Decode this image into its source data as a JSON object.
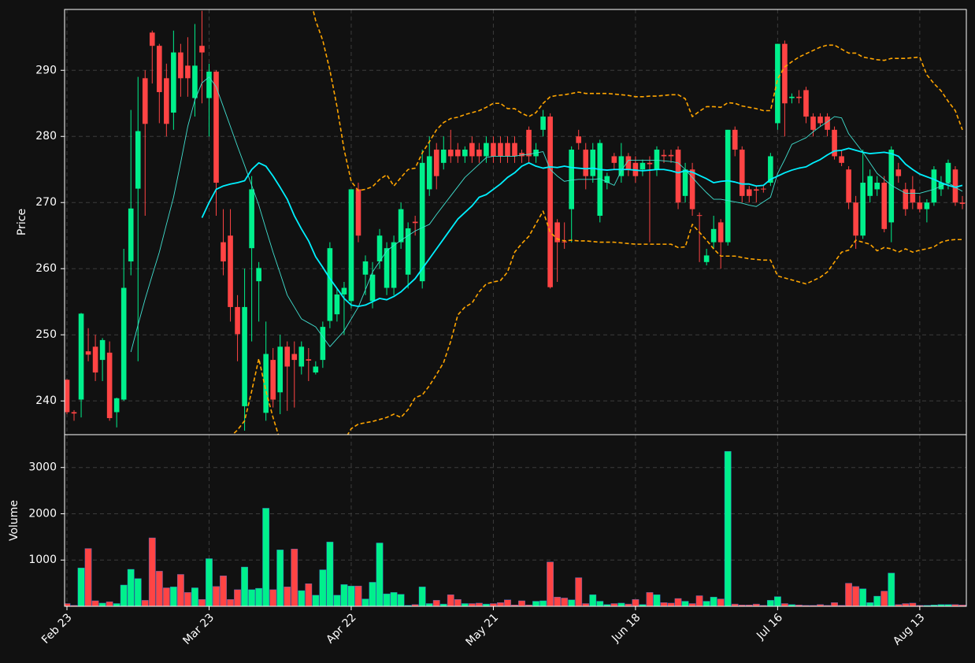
{
  "chart_data": {
    "type": "candlestick",
    "ylabel": "Price",
    "ylim": [
      234.9,
      299.2
    ],
    "yticks": [
      240,
      250,
      260,
      270,
      280,
      290
    ],
    "grid": true,
    "up_color": "#00f08c",
    "down_color": "#ff4444",
    "categories": [
      "Feb 23",
      null,
      null,
      null,
      null,
      null,
      null,
      null,
      null,
      null,
      null,
      null,
      null,
      null,
      null,
      null,
      null,
      null,
      null,
      null,
      "Mar 23",
      null,
      null,
      null,
      null,
      null,
      null,
      null,
      null,
      null,
      null,
      null,
      null,
      null,
      null,
      null,
      null,
      null,
      null,
      null,
      "Apr 22",
      null,
      null,
      null,
      null,
      null,
      null,
      null,
      null,
      null,
      null,
      null,
      null,
      null,
      null,
      null,
      null,
      null,
      null,
      null,
      "May 21",
      null,
      null,
      null,
      null,
      null,
      null,
      null,
      null,
      null,
      null,
      null,
      null,
      null,
      null,
      null,
      null,
      null,
      null,
      null,
      "Jun 18",
      null,
      null,
      null,
      null,
      null,
      null,
      null,
      null,
      null,
      null,
      null,
      null,
      null,
      null,
      null,
      null,
      null,
      null,
      null,
      "Jul 16",
      null,
      null,
      null,
      null,
      null,
      null,
      null,
      null,
      null,
      null,
      null,
      null,
      null,
      null,
      null,
      null,
      null,
      null,
      null,
      "Aug 13",
      null,
      null,
      null,
      null,
      null,
      null
    ],
    "open": [
      243.2,
      238.3,
      240.2,
      247.5,
      248.2,
      246.2,
      247.3,
      238.3,
      240.2,
      261.1,
      272.1,
      288.8,
      295.7,
      293.7,
      288.8,
      283.6,
      292.7,
      290.7,
      285.8,
      293.7,
      285.8,
      289.8,
      264,
      265,
      254.2,
      239.2,
      263.1,
      258.1,
      238.2,
      246.2,
      241.3,
      248.2,
      247.1,
      245.2,
      246.3,
      244.3,
      246.2,
      252.1,
      253.1,
      256.1,
      255.1,
      272,
      259.1,
      255.1,
      261.1,
      257.1,
      257.1,
      264,
      259.1,
      267.1,
      258.1,
      272,
      278,
      276,
      278,
      278,
      277,
      279,
      278,
      277,
      279,
      279,
      279,
      279,
      277.5,
      281,
      277,
      281,
      283,
      267,
      264.1,
      269,
      280,
      278,
      274,
      268,
      273,
      277,
      274,
      277,
      276,
      275,
      276,
      275,
      277.2,
      277.2,
      278,
      271,
      275,
      268.1,
      261,
      264,
      267,
      264,
      281,
      278,
      272,
      272,
      272.1,
      273,
      282,
      294,
      285.8,
      286,
      287,
      283,
      283,
      283,
      281,
      277,
      275,
      270,
      265,
      271,
      272,
      273,
      267,
      275,
      272,
      272,
      270,
      269,
      270,
      272,
      273,
      275,
      270
    ],
    "high": [
      243.3,
      238.6,
      253.3,
      251,
      250,
      249.5,
      249,
      240.5,
      263,
      284,
      289,
      290,
      296,
      294,
      291,
      296,
      294,
      295,
      297,
      299,
      291,
      290,
      269,
      269,
      256,
      260,
      274,
      261,
      252,
      248,
      250,
      249,
      249,
      249,
      248,
      246,
      252,
      264,
      257,
      258,
      272,
      273,
      262,
      261,
      266,
      264,
      265,
      270,
      267,
      268,
      278,
      280,
      279,
      280,
      281,
      279,
      278.5,
      280,
      279,
      280,
      280,
      280,
      280,
      280,
      278,
      281.5,
      279,
      284,
      283.5,
      267.5,
      267,
      278.5,
      281,
      279,
      279,
      279.5,
      274.5,
      277.5,
      279,
      277.5,
      277,
      276.5,
      277,
      278.5,
      278,
      278,
      278.5,
      276,
      276,
      268.5,
      263,
      268,
      267.5,
      281,
      281.5,
      278.5,
      272.5,
      272.5,
      272.5,
      277.5,
      294,
      294.5,
      286.5,
      287,
      287.5,
      283.5,
      283.5,
      283.5,
      281.5,
      278,
      275.5,
      271,
      278,
      275,
      274,
      274,
      278.5,
      276,
      273,
      274,
      271,
      270.5,
      275.5,
      274,
      276.5,
      275.5,
      271
    ],
    "low": [
      238,
      237,
      237.5,
      246,
      243,
      243,
      237,
      236,
      240,
      259,
      246,
      268,
      288,
      282,
      280,
      281,
      286,
      286,
      283,
      285,
      280,
      268,
      259,
      252,
      246,
      235.5,
      249,
      252,
      237,
      239,
      238,
      238.5,
      239,
      244,
      243,
      244,
      245,
      251,
      252,
      250,
      254,
      264,
      256,
      254,
      260,
      256,
      256,
      263,
      257,
      265,
      257,
      271,
      272,
      275,
      276,
      276,
      276,
      276,
      276,
      276,
      276,
      276,
      276,
      276,
      276,
      276,
      276,
      280,
      257,
      258,
      263,
      264,
      278,
      272,
      273,
      267,
      272,
      275,
      273,
      274,
      273,
      274,
      264,
      274,
      276,
      276,
      269,
      270,
      268,
      261,
      260.5,
      263,
      260,
      263.5,
      277,
      270,
      270,
      270,
      271.5,
      272.5,
      281,
      280,
      285,
      285,
      282,
      280,
      281.5,
      280,
      276.5,
      275.5,
      269,
      263,
      264.5,
      270,
      271,
      265.5,
      264,
      273,
      268,
      269,
      268.5,
      267,
      269.5,
      271,
      272,
      269.5,
      269
    ],
    "close": [
      238.3,
      238.1,
      253.2,
      247,
      244.3,
      249.2,
      237.4,
      240.4,
      257.1,
      269.1,
      280.8,
      281.9,
      293.7,
      286.7,
      281.9,
      292.7,
      288.8,
      288.8,
      290.7,
      292.7,
      289.8,
      273,
      261.1,
      254.2,
      250.1,
      254.2,
      272,
      260.1,
      247.1,
      240.2,
      248.2,
      245.2,
      246.2,
      248.2,
      246.1,
      245.2,
      251.2,
      263.1,
      256.1,
      257.1,
      272,
      265,
      261.1,
      259.1,
      265,
      263.1,
      264,
      269,
      266.1,
      266.9,
      276,
      277,
      274,
      278,
      277,
      277,
      278,
      277,
      277,
      279,
      277,
      277,
      277,
      277,
      277,
      277,
      278,
      283,
      257.2,
      264,
      264,
      278,
      279,
      274,
      278,
      279,
      274,
      276,
      277,
      275,
      274,
      276,
      275.8,
      278,
      277,
      277,
      270,
      275,
      269,
      268,
      262,
      266,
      264,
      281,
      278,
      271,
      271,
      271.8,
      272,
      277,
      294,
      285,
      286,
      285.8,
      283,
      281,
      282,
      281,
      277,
      276,
      270,
      265,
      273,
      274,
      273,
      266,
      278,
      274,
      269,
      270,
      269,
      270,
      275,
      273,
      276,
      270,
      269.8
    ],
    "overlays": [
      {
        "color": "#40e0d0",
        "linewidth": 0.9,
        "dashed": false,
        "values": [
          null,
          null,
          null,
          null,
          null,
          null,
          null,
          null,
          null,
          247.4,
          251.5,
          255.4,
          259,
          262.5,
          266.7,
          270.8,
          276,
          281.5,
          285.5,
          288.1,
          289,
          287.5,
          284.5,
          281.5,
          278.5,
          275.6,
          272.6,
          269.6,
          266,
          262.5,
          259.3,
          256,
          254.2,
          252.4,
          251.8,
          251.2,
          249.7,
          248.2,
          249.4,
          250.6,
          252.4,
          254.2,
          256.8,
          259.5,
          261.1,
          262.7,
          263.5,
          264.3,
          265,
          265.7,
          266.2,
          266.7,
          268.2,
          269.6,
          271,
          272.4,
          273.8,
          274.8,
          275.8,
          276.8,
          277,
          277,
          277,
          277,
          277.2,
          277.3,
          277.5,
          277.7,
          275,
          274,
          273.2,
          273.4,
          273.5,
          273.5,
          273.5,
          273.6,
          273.1,
          272.6,
          274.8,
          276.4,
          276.4,
          276.4,
          276.4,
          276.4,
          276.3,
          276.2,
          276,
          275,
          273.8,
          272.6,
          271.5,
          270.5,
          270.5,
          270.3,
          270.1,
          269.9,
          269.6,
          269.4,
          270.1,
          270.8,
          274.4,
          276.5,
          278.8,
          279.3,
          279.8,
          280.7,
          281.5,
          282.2,
          283,
          282.8,
          280.4,
          279,
          277.6,
          276,
          274.4,
          273.5,
          272.6,
          272,
          271.4,
          271.4,
          271.4,
          271.7,
          272,
          272.5,
          273,
          272.3,
          271.7
        ]
      },
      {
        "color": "#00f0ff",
        "linewidth": 1.8,
        "dashed": false,
        "values": [
          null,
          null,
          null,
          null,
          null,
          null,
          null,
          null,
          null,
          null,
          null,
          null,
          null,
          null,
          null,
          null,
          null,
          null,
          null,
          267.7,
          270,
          272,
          272.5,
          272.8,
          273,
          273.3,
          275,
          276,
          275.5,
          274,
          272.3,
          270.5,
          268,
          266,
          264.2,
          261.8,
          260.2,
          258.5,
          257,
          255.5,
          254.5,
          254.3,
          254.5,
          255,
          255.5,
          255.3,
          255.8,
          256.5,
          257.5,
          258.5,
          260,
          261.5,
          263,
          264.5,
          266,
          267.5,
          268.5,
          269.5,
          270.8,
          271.2,
          272,
          272.8,
          273.8,
          274.5,
          275.5,
          276,
          275.5,
          275.2,
          275.4,
          275.3,
          275.5,
          275.3,
          275.2,
          275.1,
          275.2,
          275,
          274.9,
          275,
          275,
          275,
          274.9,
          274.8,
          274.9,
          275,
          275,
          274.8,
          274.5,
          274.8,
          274.6,
          274.1,
          273.6,
          273,
          273.2,
          273.3,
          273.1,
          272.8,
          272.8,
          272.5,
          272.6,
          273.5,
          274,
          274.5,
          274.9,
          275.2,
          275.4,
          276,
          276.5,
          277.2,
          277.8,
          277.9,
          278.2,
          277.9,
          277.6,
          277.4,
          277.5,
          277.6,
          277.4,
          277,
          275.8,
          275,
          274.3,
          273.9,
          273.5,
          273,
          272.6,
          272.3,
          272.6
        ]
      },
      {
        "color": "#ffa500",
        "linewidth": 1.6,
        "dashed": true,
        "values": [
          null,
          null,
          null,
          null,
          null,
          null,
          null,
          null,
          null,
          null,
          null,
          null,
          null,
          null,
          null,
          null,
          null,
          null,
          null,
          305,
          310,
          315,
          318,
          320,
          321,
          321,
          320,
          318,
          316,
          314,
          312,
          310,
          308,
          305,
          302,
          297.5,
          294.5,
          290,
          284.5,
          278,
          273.2,
          271.8,
          272,
          272.4,
          273.5,
          274.2,
          272.5,
          273.8,
          275,
          275.2,
          277.5,
          279.2,
          281,
          282.1,
          282.7,
          282.9,
          283.3,
          283.6,
          283.9,
          284.4,
          285,
          285,
          284.2,
          284.2,
          283.5,
          283,
          283.6,
          285,
          286,
          286.2,
          286.3,
          286.5,
          286.7,
          286.5,
          286.5,
          286.5,
          286.5,
          286.4,
          286.3,
          286.2,
          286,
          286,
          286.1,
          286.1,
          286.2,
          286.3,
          286.3,
          285.7,
          283,
          283.8,
          284.5,
          284.5,
          284.4,
          285.1,
          285,
          284.6,
          284.4,
          284.2,
          283.9,
          283.9,
          288.7,
          290.5,
          291.3,
          292,
          292.5,
          293,
          293.5,
          293.8,
          293.8,
          293.2,
          292.6,
          292.6,
          292,
          291.8,
          291.6,
          291.5,
          291.8,
          291.8,
          291.8,
          291.9,
          292,
          289.3,
          288,
          286.9,
          285.3,
          283.9,
          281
        ]
      },
      {
        "color": "#ffa500",
        "linewidth": 1.6,
        "dashed": true,
        "values": [
          null,
          null,
          null,
          null,
          null,
          null,
          null,
          null,
          null,
          null,
          null,
          null,
          null,
          null,
          null,
          null,
          null,
          null,
          null,
          226,
          228.5,
          231,
          233.5,
          234.6,
          235.6,
          237,
          241.5,
          246.4,
          241.5,
          237.5,
          234,
          231,
          228,
          226,
          225,
          224.5,
          225.5,
          228,
          231,
          234,
          235.8,
          236.5,
          236.7,
          236.9,
          237.2,
          237.5,
          238,
          237.5,
          238.7,
          240.5,
          240.9,
          242.3,
          244,
          245.8,
          249,
          253,
          254.2,
          254.8,
          256.5,
          257.7,
          258,
          258.2,
          259.5,
          262.5,
          263.8,
          264.9,
          266.8,
          268.7,
          265.5,
          264.5,
          264.2,
          264.3,
          264.2,
          264.2,
          264.1,
          264,
          264,
          264,
          263.9,
          263.8,
          263.7,
          263.7,
          263.7,
          263.7,
          263.7,
          263.7,
          263.2,
          263.3,
          266.7,
          265.5,
          264.3,
          263,
          261.9,
          261.9,
          261.9,
          261.7,
          261.5,
          261.4,
          261.3,
          261.3,
          258.9,
          258.6,
          258.3,
          258,
          257.7,
          258.2,
          258.7,
          259.5,
          261,
          262.5,
          262.8,
          264.3,
          264,
          263.7,
          262.7,
          263.2,
          263,
          262.5,
          263,
          262.5,
          262.8,
          263,
          263.3,
          264,
          264.3,
          264.4,
          264.4
        ]
      }
    ],
    "volume": {
      "ylabel": "Volume",
      "ylim": [
        0,
        3710
      ],
      "yticks": [
        1000,
        2000,
        3000
      ],
      "values": [
        60,
        20,
        830,
        1250,
        120,
        70,
        100,
        60,
        460,
        800,
        600,
        130,
        1480,
        760,
        400,
        420,
        690,
        300,
        400,
        150,
        1030,
        430,
        660,
        150,
        360,
        850,
        360,
        390,
        2120,
        360,
        1220,
        420,
        1240,
        340,
        490,
        240,
        790,
        1390,
        240,
        470,
        440,
        440,
        160,
        520,
        1370,
        270,
        300,
        260,
        20,
        40,
        420,
        60,
        130,
        50,
        250,
        150,
        60,
        60,
        70,
        50,
        60,
        80,
        140,
        30,
        120,
        30,
        110,
        120,
        960,
        200,
        180,
        140,
        620,
        60,
        250,
        110,
        40,
        60,
        70,
        50,
        150,
        40,
        300,
        250,
        80,
        70,
        170,
        110,
        60,
        230,
        110,
        200,
        160,
        3350,
        50,
        30,
        30,
        50,
        20,
        130,
        210,
        60,
        40,
        30,
        20,
        20,
        40,
        20,
        80,
        20,
        500,
        430,
        380,
        80,
        220,
        330,
        720,
        40,
        60,
        70,
        20,
        20,
        30,
        40,
        40,
        40,
        30
      ]
    }
  }
}
